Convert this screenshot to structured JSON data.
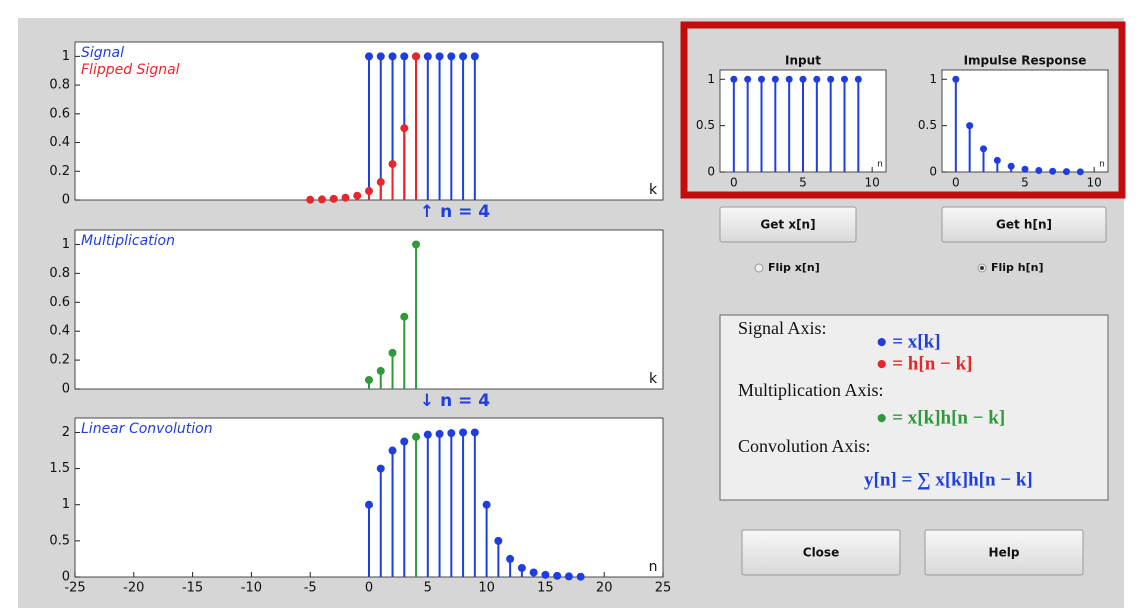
{
  "chart_data": [
    {
      "type": "stem",
      "xlim": [
        -25,
        25
      ],
      "ylim": [
        0,
        1.1
      ],
      "yticks": [
        0,
        0.2,
        0.4,
        0.6,
        0.8,
        1
      ],
      "xlabel": "k",
      "annotation": "↑ n = 4",
      "series": [
        {
          "name": "Signal",
          "color": "#1f3ee0",
          "x": [
            0,
            1,
            2,
            3,
            4,
            5,
            6,
            7,
            8,
            9
          ],
          "values": [
            1,
            1,
            1,
            1,
            1,
            1,
            1,
            1,
            1,
            1
          ]
        },
        {
          "name": "Flipped Signal",
          "color": "#e8262b",
          "x": [
            -5,
            -4,
            -3,
            -2,
            -1,
            0,
            1,
            2,
            3,
            4
          ],
          "values": [
            0.002,
            0.004,
            0.008,
            0.016,
            0.03,
            0.0625,
            0.125,
            0.25,
            0.5,
            1
          ]
        }
      ]
    },
    {
      "type": "stem",
      "xlim": [
        -25,
        25
      ],
      "ylim": [
        0,
        1.1
      ],
      "yticks": [
        0,
        0.2,
        0.4,
        0.6,
        0.8,
        1
      ],
      "xlabel": "k",
      "label": "Multiplication",
      "annotation": "↓ n = 4",
      "series": [
        {
          "color": "#2e9a3a",
          "x": [
            0,
            1,
            2,
            3,
            4
          ],
          "values": [
            0.0625,
            0.125,
            0.25,
            0.5,
            1
          ]
        }
      ]
    },
    {
      "type": "stem",
      "xlim": [
        -25,
        25
      ],
      "ylim": [
        0,
        2.2
      ],
      "yticks": [
        0,
        0.5,
        1,
        1.5,
        2
      ],
      "xticks": [
        -25,
        -20,
        -15,
        -10,
        -5,
        0,
        5,
        10,
        15,
        20,
        25
      ],
      "xlabel": "n",
      "label": "Linear Convolution",
      "series": [
        {
          "color": "#1f3ee0",
          "x": [
            0,
            1,
            2,
            3,
            5,
            6,
            7,
            8,
            9,
            10,
            11,
            12,
            13,
            14,
            15,
            16,
            17,
            18
          ],
          "values": [
            1,
            1.5,
            1.75,
            1.875,
            1.97,
            1.98,
            1.99,
            2,
            2,
            1,
            0.5,
            0.25,
            0.125,
            0.0625,
            0.03,
            0.016,
            0.008,
            0.004
          ]
        },
        {
          "color": "#2e9a3a",
          "x": [
            4
          ],
          "values": [
            1.94
          ]
        }
      ]
    },
    {
      "type": "stem",
      "title": "Input",
      "xlim": [
        -1,
        11
      ],
      "ylim": [
        0,
        1.1
      ],
      "yticks": [
        0,
        0.5,
        1
      ],
      "xticks": [
        0,
        5,
        10
      ],
      "xlabel": "n",
      "series": [
        {
          "color": "#1f3ee0",
          "x": [
            0,
            1,
            2,
            3,
            4,
            5,
            6,
            7,
            8,
            9
          ],
          "values": [
            1,
            1,
            1,
            1,
            1,
            1,
            1,
            1,
            1,
            1
          ]
        }
      ]
    },
    {
      "type": "stem",
      "title": "Impulse Response",
      "xlim": [
        -1,
        11
      ],
      "ylim": [
        0,
        1.1
      ],
      "yticks": [
        0,
        0.5,
        1
      ],
      "xticks": [
        0,
        5,
        10
      ],
      "xlabel": "n",
      "series": [
        {
          "color": "#1f3ee0",
          "x": [
            0,
            1,
            2,
            3,
            4,
            5,
            6,
            7,
            8,
            9
          ],
          "values": [
            1,
            0.5,
            0.25,
            0.125,
            0.0625,
            0.03,
            0.016,
            0.008,
            0.004,
            0.002
          ]
        }
      ]
    }
  ],
  "controls": {
    "get_x": "Get x[n]",
    "get_h": "Get h[n]",
    "flip_x": "Flip x[n]",
    "flip_h": "Flip h[n]",
    "close": "Close",
    "help": "Help"
  },
  "legend_box": {
    "signal_heading": "Signal Axis:",
    "signal_x": "● = x[k]",
    "signal_h": "● = h[n − k]",
    "multiplication_heading": "Multiplication Axis:",
    "multiplication": "● = x[k]h[n − k]",
    "convolution_heading": "Convolution Axis:",
    "convolution": "y[n] = ∑ x[k]h[n − k]"
  }
}
